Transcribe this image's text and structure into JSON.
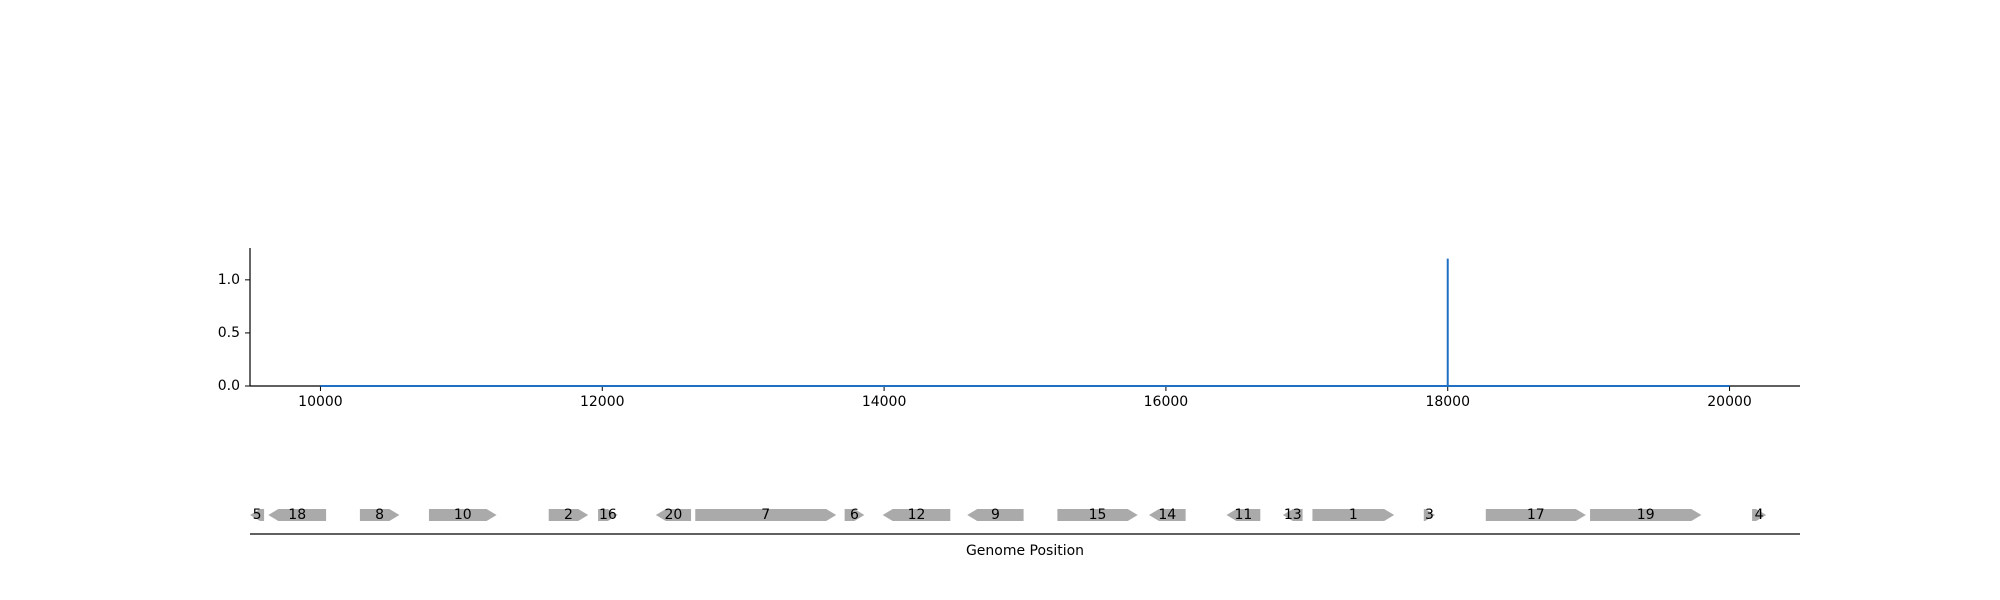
{
  "chart_data": [
    {
      "type": "line",
      "title": "",
      "xlabel": "",
      "ylabel": "",
      "xlim": [
        9500,
        20500
      ],
      "ylim": [
        0,
        1.3
      ],
      "x_ticks": [
        10000,
        12000,
        14000,
        16000,
        18000,
        20000
      ],
      "x_tick_labels": [
        "10000",
        "12000",
        "14000",
        "16000",
        "18000",
        "20000"
      ],
      "y_ticks": [
        0.0,
        0.5,
        1.0
      ],
      "y_tick_labels": [
        "0.0",
        "0.5",
        "1.0"
      ],
      "grid": false,
      "series": [
        {
          "color": "#1f6fc5",
          "x": [
            10000,
            18000,
            18000,
            18000,
            20000
          ],
          "y": [
            0,
            0,
            1.2,
            0,
            0
          ]
        }
      ]
    },
    {
      "type": "gene_map",
      "xlabel": "Genome Position",
      "xlim": [
        9500,
        20500
      ],
      "feature_color": "#aaaaaa",
      "features": [
        {
          "label": "5",
          "start": 9500,
          "end": 9600,
          "strand": -1
        },
        {
          "label": "18",
          "start": 9630,
          "end": 10040,
          "strand": -1
        },
        {
          "label": "8",
          "start": 10280,
          "end": 10560,
          "strand": 1
        },
        {
          "label": "10",
          "start": 10770,
          "end": 11250,
          "strand": 1
        },
        {
          "label": "2",
          "start": 11620,
          "end": 11900,
          "strand": 1
        },
        {
          "label": "16",
          "start": 11970,
          "end": 12110,
          "strand": 1
        },
        {
          "label": "20",
          "start": 12380,
          "end": 12630,
          "strand": -1
        },
        {
          "label": "7",
          "start": 12660,
          "end": 13660,
          "strand": 1
        },
        {
          "label": "6",
          "start": 13720,
          "end": 13860,
          "strand": 1
        },
        {
          "label": "12",
          "start": 13990,
          "end": 14470,
          "strand": -1
        },
        {
          "label": "9",
          "start": 14590,
          "end": 14990,
          "strand": -1
        },
        {
          "label": "15",
          "start": 15230,
          "end": 15800,
          "strand": 1
        },
        {
          "label": "14",
          "start": 15880,
          "end": 16140,
          "strand": -1
        },
        {
          "label": "11",
          "start": 16430,
          "end": 16670,
          "strand": -1
        },
        {
          "label": "13",
          "start": 16830,
          "end": 16970,
          "strand": -1
        },
        {
          "label": "1",
          "start": 17040,
          "end": 17620,
          "strand": 1
        },
        {
          "label": "3",
          "start": 17830,
          "end": 17910,
          "strand": 1
        },
        {
          "label": "17",
          "start": 18270,
          "end": 18980,
          "strand": 1
        },
        {
          "label": "19",
          "start": 19010,
          "end": 19800,
          "strand": 1
        },
        {
          "label": "4",
          "start": 20160,
          "end": 20260,
          "strand": 1
        }
      ]
    }
  ]
}
